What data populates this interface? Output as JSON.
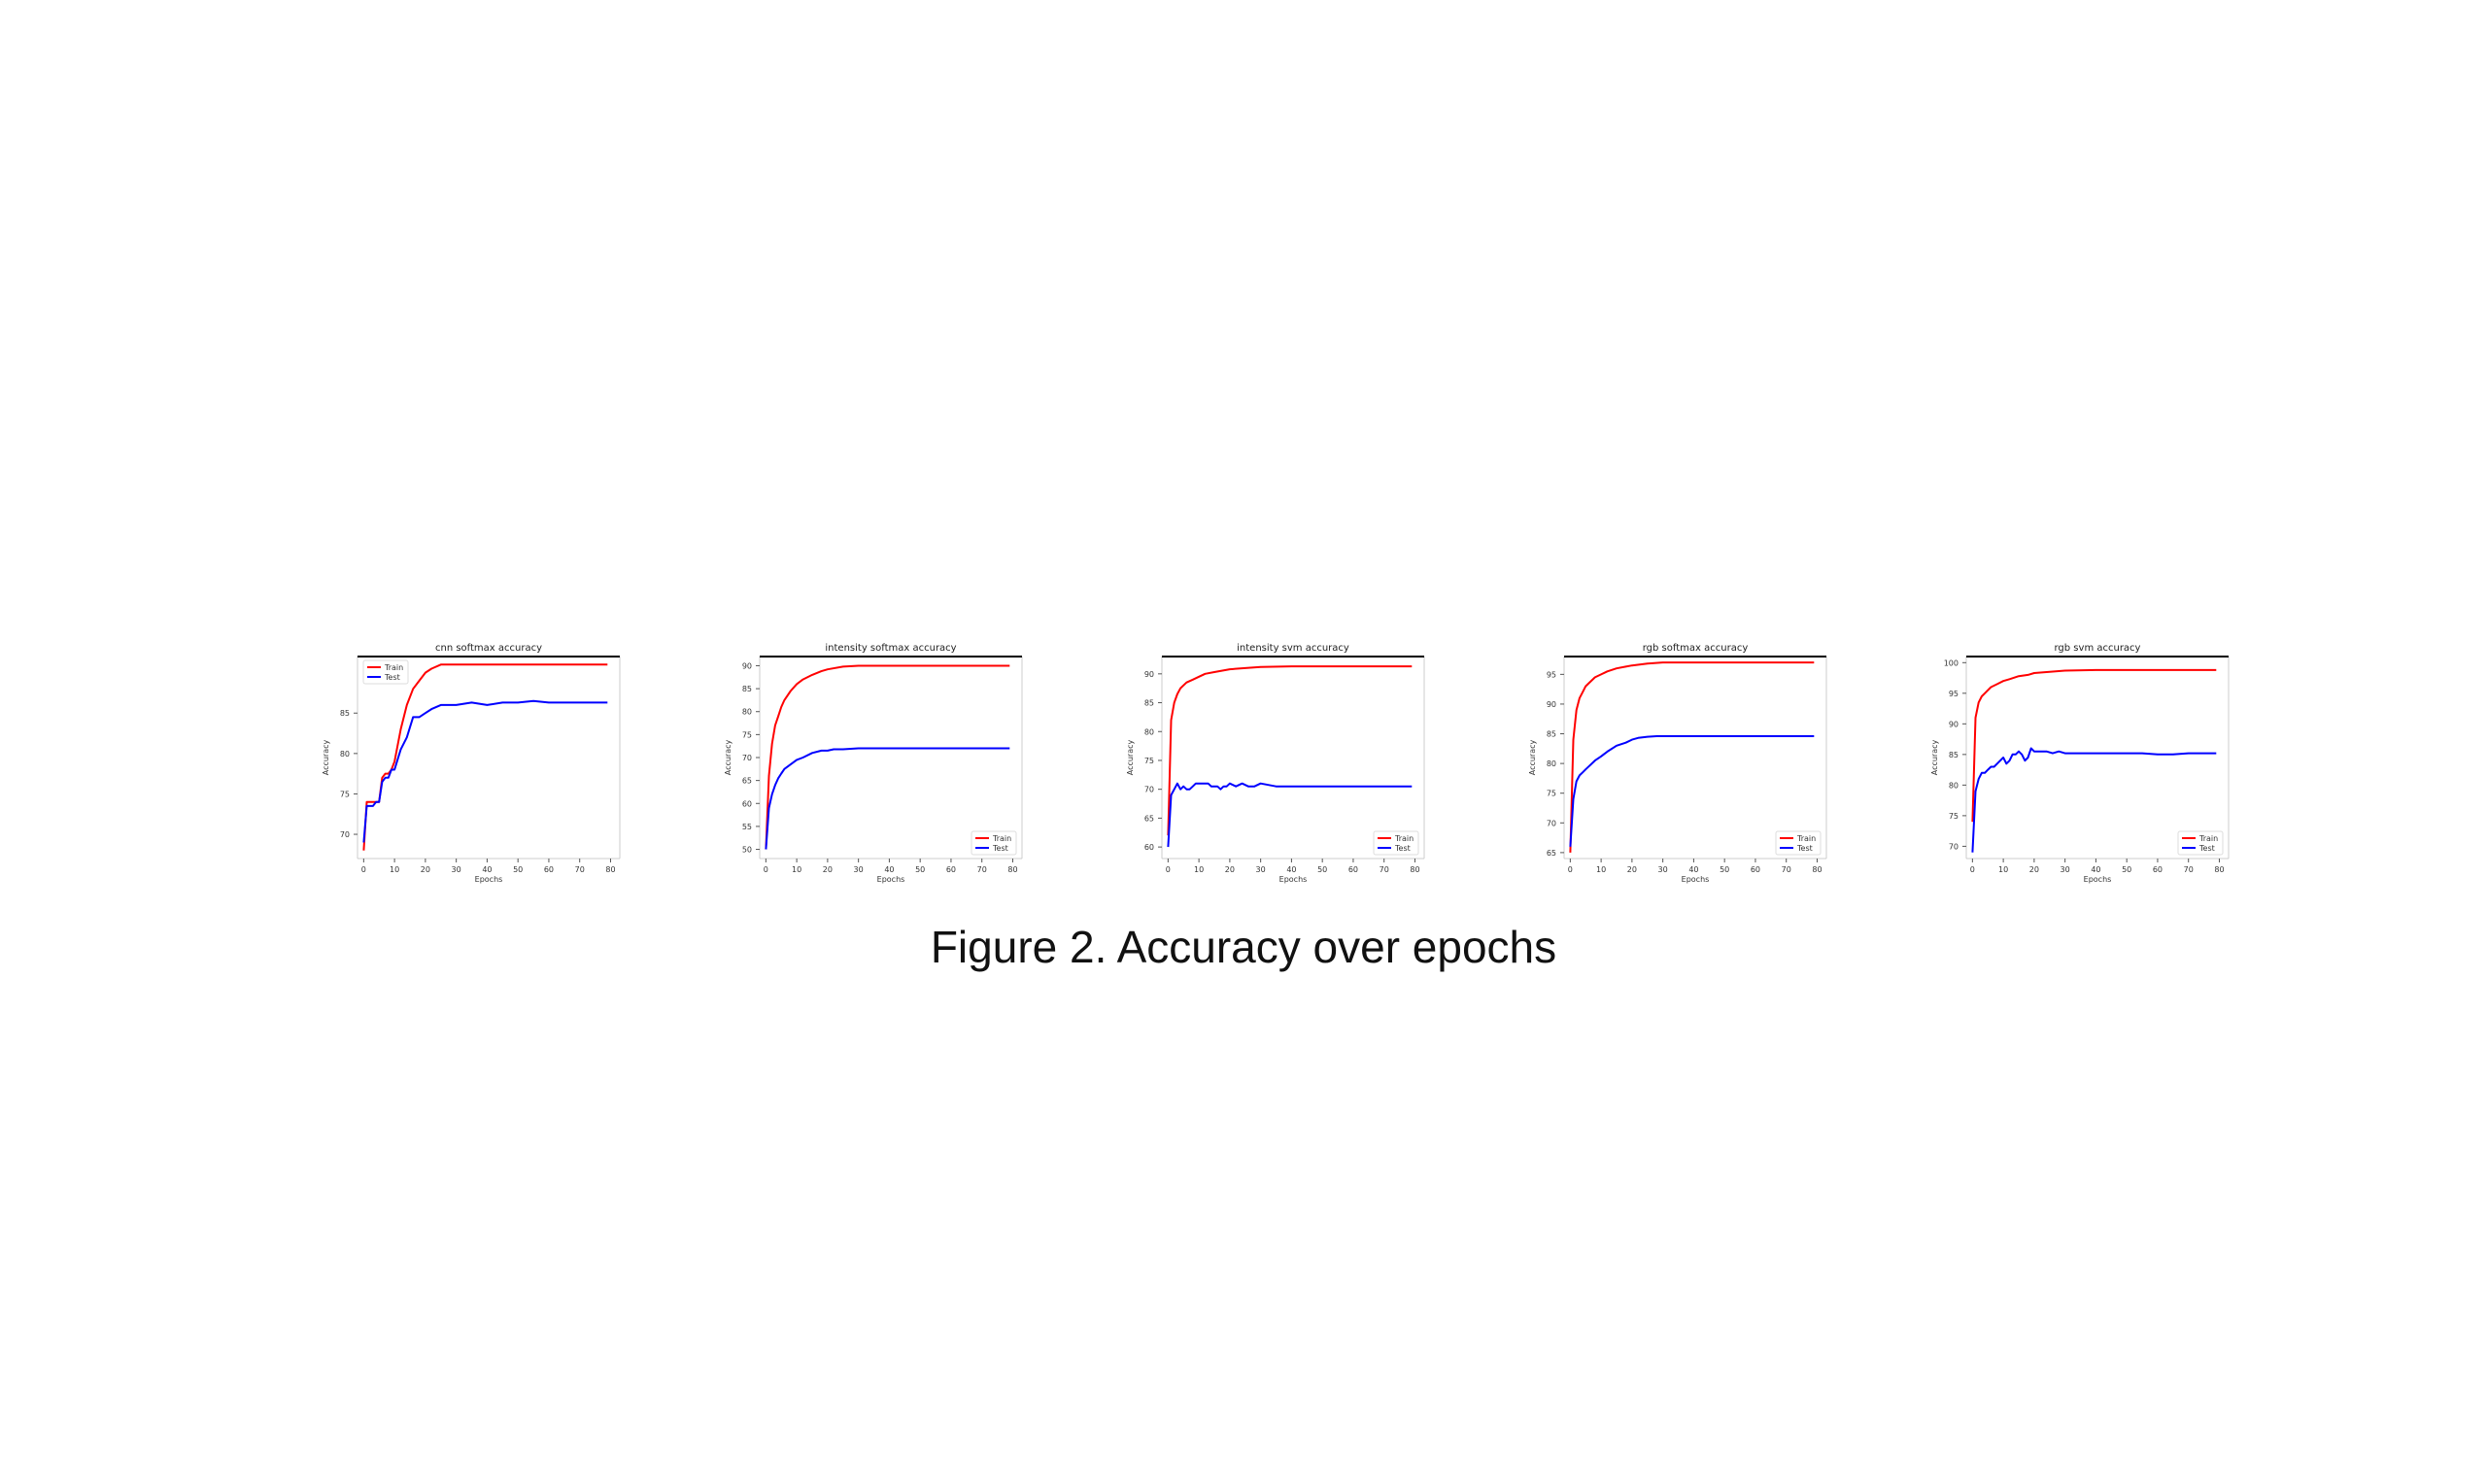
{
  "caption": "Figure 2. Accuracy over epochs",
  "colors": {
    "train": "#ff0000",
    "test": "#0000ff",
    "axis": "#000000"
  },
  "chart_data": [
    {
      "type": "line",
      "title": "cnn softmax accuracy",
      "xlabel": "Epochs",
      "ylabel": "Accuracy",
      "xlim": [
        -2,
        83
      ],
      "ylim": [
        67,
        92
      ],
      "xticks": [
        0,
        10,
        20,
        30,
        40,
        50,
        60,
        70,
        80
      ],
      "yticks": [
        70,
        75,
        80,
        85
      ],
      "legend": "upper-left",
      "series": [
        {
          "name": "Train",
          "color": "#ff0000",
          "x": [
            0,
            1,
            2,
            3,
            4,
            5,
            6,
            7,
            8,
            9,
            10,
            12,
            14,
            16,
            18,
            20,
            22,
            25,
            28,
            30,
            35,
            40,
            50,
            60,
            70,
            79
          ],
          "y": [
            68,
            74,
            74,
            74,
            74,
            74,
            77,
            77.5,
            77.5,
            78,
            79,
            83,
            86,
            88,
            89,
            90,
            90.5,
            91,
            91,
            91,
            91,
            91,
            91,
            91,
            91,
            91
          ]
        },
        {
          "name": "Test",
          "color": "#0000ff",
          "x": [
            0,
            1,
            2,
            3,
            4,
            5,
            6,
            7,
            8,
            9,
            10,
            12,
            14,
            16,
            18,
            20,
            22,
            25,
            28,
            30,
            35,
            40,
            45,
            50,
            55,
            60,
            65,
            70,
            75,
            79
          ],
          "y": [
            69,
            73.5,
            73.5,
            73.5,
            74,
            74,
            76.5,
            77,
            77,
            78,
            78,
            80.5,
            82,
            84.5,
            84.5,
            85,
            85.5,
            86,
            86,
            86,
            86.3,
            86,
            86.3,
            86.3,
            86.5,
            86.3,
            86.3,
            86.3,
            86.3,
            86.3
          ]
        }
      ]
    },
    {
      "type": "line",
      "title": "intensity softmax accuracy",
      "xlabel": "Epochs",
      "ylabel": "Accuracy",
      "xlim": [
        -2,
        83
      ],
      "ylim": [
        48,
        92
      ],
      "xticks": [
        0,
        10,
        20,
        30,
        40,
        50,
        60,
        70,
        80
      ],
      "yticks": [
        50,
        55,
        60,
        65,
        70,
        75,
        80,
        85,
        90
      ],
      "legend": "lower-right",
      "series": [
        {
          "name": "Train",
          "color": "#ff0000",
          "x": [
            0,
            1,
            2,
            3,
            4,
            5,
            6,
            8,
            10,
            12,
            15,
            18,
            20,
            25,
            30,
            40,
            50,
            60,
            70,
            79
          ],
          "y": [
            50,
            66,
            73,
            77,
            79,
            81,
            82.5,
            84.5,
            86,
            87,
            88,
            88.8,
            89.2,
            89.8,
            90,
            90,
            90,
            90,
            90,
            90
          ]
        },
        {
          "name": "Test",
          "color": "#0000ff",
          "x": [
            0,
            1,
            2,
            3,
            4,
            5,
            6,
            8,
            10,
            12,
            15,
            18,
            20,
            22,
            25,
            30,
            40,
            50,
            60,
            70,
            79
          ],
          "y": [
            50,
            59,
            62,
            64,
            65.5,
            66.5,
            67.5,
            68.5,
            69.5,
            70,
            71,
            71.5,
            71.5,
            71.8,
            71.8,
            72,
            72,
            72,
            72,
            72,
            72
          ]
        }
      ]
    },
    {
      "type": "line",
      "title": "intensity svm accuracy",
      "xlabel": "Epochs",
      "ylabel": "Accuracy",
      "xlim": [
        -2,
        83
      ],
      "ylim": [
        58,
        93
      ],
      "xticks": [
        0,
        10,
        20,
        30,
        40,
        50,
        60,
        70,
        80
      ],
      "yticks": [
        60,
        65,
        70,
        75,
        80,
        85,
        90
      ],
      "legend": "lower-right",
      "series": [
        {
          "name": "Train",
          "color": "#ff0000",
          "x": [
            0,
            1,
            2,
            3,
            4,
            5,
            6,
            8,
            10,
            12,
            15,
            20,
            25,
            30,
            40,
            50,
            60,
            70,
            79
          ],
          "y": [
            62,
            82,
            85,
            86.5,
            87.5,
            88,
            88.5,
            89,
            89.5,
            90,
            90.3,
            90.8,
            91,
            91.2,
            91.3,
            91.3,
            91.3,
            91.3,
            91.3
          ]
        },
        {
          "name": "Test",
          "color": "#0000ff",
          "x": [
            0,
            1,
            2,
            3,
            4,
            5,
            6,
            7,
            8,
            9,
            10,
            11,
            12,
            13,
            14,
            15,
            16,
            17,
            18,
            19,
            20,
            22,
            24,
            26,
            28,
            30,
            35,
            40,
            45,
            50,
            55,
            60,
            65,
            70,
            75,
            79
          ],
          "y": [
            60,
            69,
            70,
            71,
            70,
            70.5,
            70,
            70,
            70.5,
            71,
            71,
            71,
            71,
            71,
            70.5,
            70.5,
            70.5,
            70,
            70.5,
            70.5,
            71,
            70.5,
            71,
            70.5,
            70.5,
            71,
            70.5,
            70.5,
            70.5,
            70.5,
            70.5,
            70.5,
            70.5,
            70.5,
            70.5,
            70.5
          ]
        }
      ]
    },
    {
      "type": "line",
      "title": "rgb softmax accuracy",
      "xlabel": "Epochs",
      "ylabel": "Accuracy",
      "xlim": [
        -2,
        83
      ],
      "ylim": [
        64,
        98
      ],
      "xticks": [
        0,
        10,
        20,
        30,
        40,
        50,
        60,
        70,
        80
      ],
      "yticks": [
        65,
        70,
        75,
        80,
        85,
        90,
        95
      ],
      "legend": "lower-right",
      "series": [
        {
          "name": "Train",
          "color": "#ff0000",
          "x": [
            0,
            1,
            2,
            3,
            4,
            5,
            6,
            8,
            10,
            12,
            15,
            18,
            20,
            25,
            30,
            40,
            50,
            60,
            70,
            79
          ],
          "y": [
            65,
            84,
            89,
            91,
            92,
            93,
            93.5,
            94.5,
            95,
            95.5,
            96,
            96.3,
            96.5,
            96.8,
            97,
            97,
            97,
            97,
            97,
            97
          ]
        },
        {
          "name": "Test",
          "color": "#0000ff",
          "x": [
            0,
            1,
            2,
            3,
            4,
            5,
            6,
            8,
            10,
            12,
            15,
            18,
            20,
            22,
            25,
            28,
            30,
            35,
            40,
            50,
            60,
            70,
            79
          ],
          "y": [
            66,
            74,
            77,
            78,
            78.5,
            79,
            79.5,
            80.5,
            81.2,
            82,
            83,
            83.5,
            84,
            84.3,
            84.5,
            84.6,
            84.6,
            84.6,
            84.6,
            84.6,
            84.6,
            84.6,
            84.6
          ]
        }
      ]
    },
    {
      "type": "line",
      "title": "rgb svm accuracy",
      "xlabel": "Epochs",
      "ylabel": "Accuracy",
      "xlim": [
        -2,
        83
      ],
      "ylim": [
        68,
        101
      ],
      "xticks": [
        0,
        10,
        20,
        30,
        40,
        50,
        60,
        70,
        80
      ],
      "yticks": [
        70,
        75,
        80,
        85,
        90,
        95,
        100
      ],
      "legend": "lower-right",
      "series": [
        {
          "name": "Train",
          "color": "#ff0000",
          "x": [
            0,
            1,
            2,
            3,
            4,
            5,
            6,
            8,
            10,
            12,
            15,
            18,
            20,
            25,
            30,
            40,
            50,
            60,
            70,
            79
          ],
          "y": [
            74,
            91,
            93.5,
            94.5,
            95,
            95.5,
            96,
            96.5,
            97,
            97.3,
            97.8,
            98,
            98.3,
            98.5,
            98.7,
            98.8,
            98.8,
            98.8,
            98.8,
            98.8
          ]
        },
        {
          "name": "Test",
          "color": "#0000ff",
          "x": [
            0,
            1,
            2,
            3,
            4,
            5,
            6,
            7,
            8,
            9,
            10,
            11,
            12,
            13,
            14,
            15,
            16,
            17,
            18,
            19,
            20,
            22,
            24,
            26,
            28,
            30,
            35,
            40,
            45,
            50,
            55,
            60,
            65,
            70,
            75,
            79
          ],
          "y": [
            69,
            79,
            81,
            82,
            82,
            82.5,
            83,
            83,
            83.5,
            84,
            84.5,
            83.5,
            84,
            85,
            85,
            85.5,
            85,
            84,
            84.5,
            86,
            85.5,
            85.5,
            85.5,
            85.2,
            85.5,
            85.2,
            85.2,
            85.2,
            85.2,
            85.2,
            85.2,
            85,
            85,
            85.2,
            85.2,
            85.2
          ]
        }
      ]
    }
  ]
}
